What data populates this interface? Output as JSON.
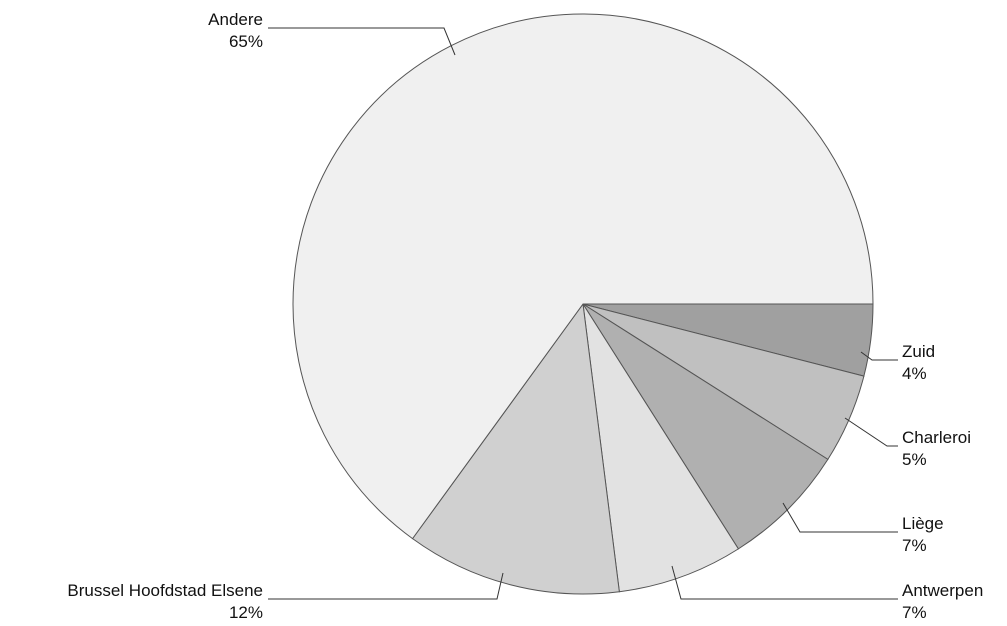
{
  "chart_data": {
    "type": "pie",
    "title": "",
    "start_angle_deg": 0,
    "direction": "clockwise",
    "slices": [
      {
        "label": "Zuid",
        "value": 4,
        "display": "4%",
        "color": "#a0a0a0"
      },
      {
        "label": "Charleroi",
        "value": 5,
        "display": "5%",
        "color": "#c0c0c0"
      },
      {
        "label": "Liège",
        "value": 7,
        "display": "7%",
        "color": "#b0b0b0"
      },
      {
        "label": "Antwerpen",
        "value": 7,
        "display": "7%",
        "color": "#e2e2e2"
      },
      {
        "label": "Brussel Hoofdstad Elsene",
        "value": 12,
        "display": "12%",
        "color": "#d0d0d0"
      },
      {
        "label": "Andere",
        "value": 65,
        "display": "65%",
        "color": "#f0f0f0"
      }
    ]
  }
}
